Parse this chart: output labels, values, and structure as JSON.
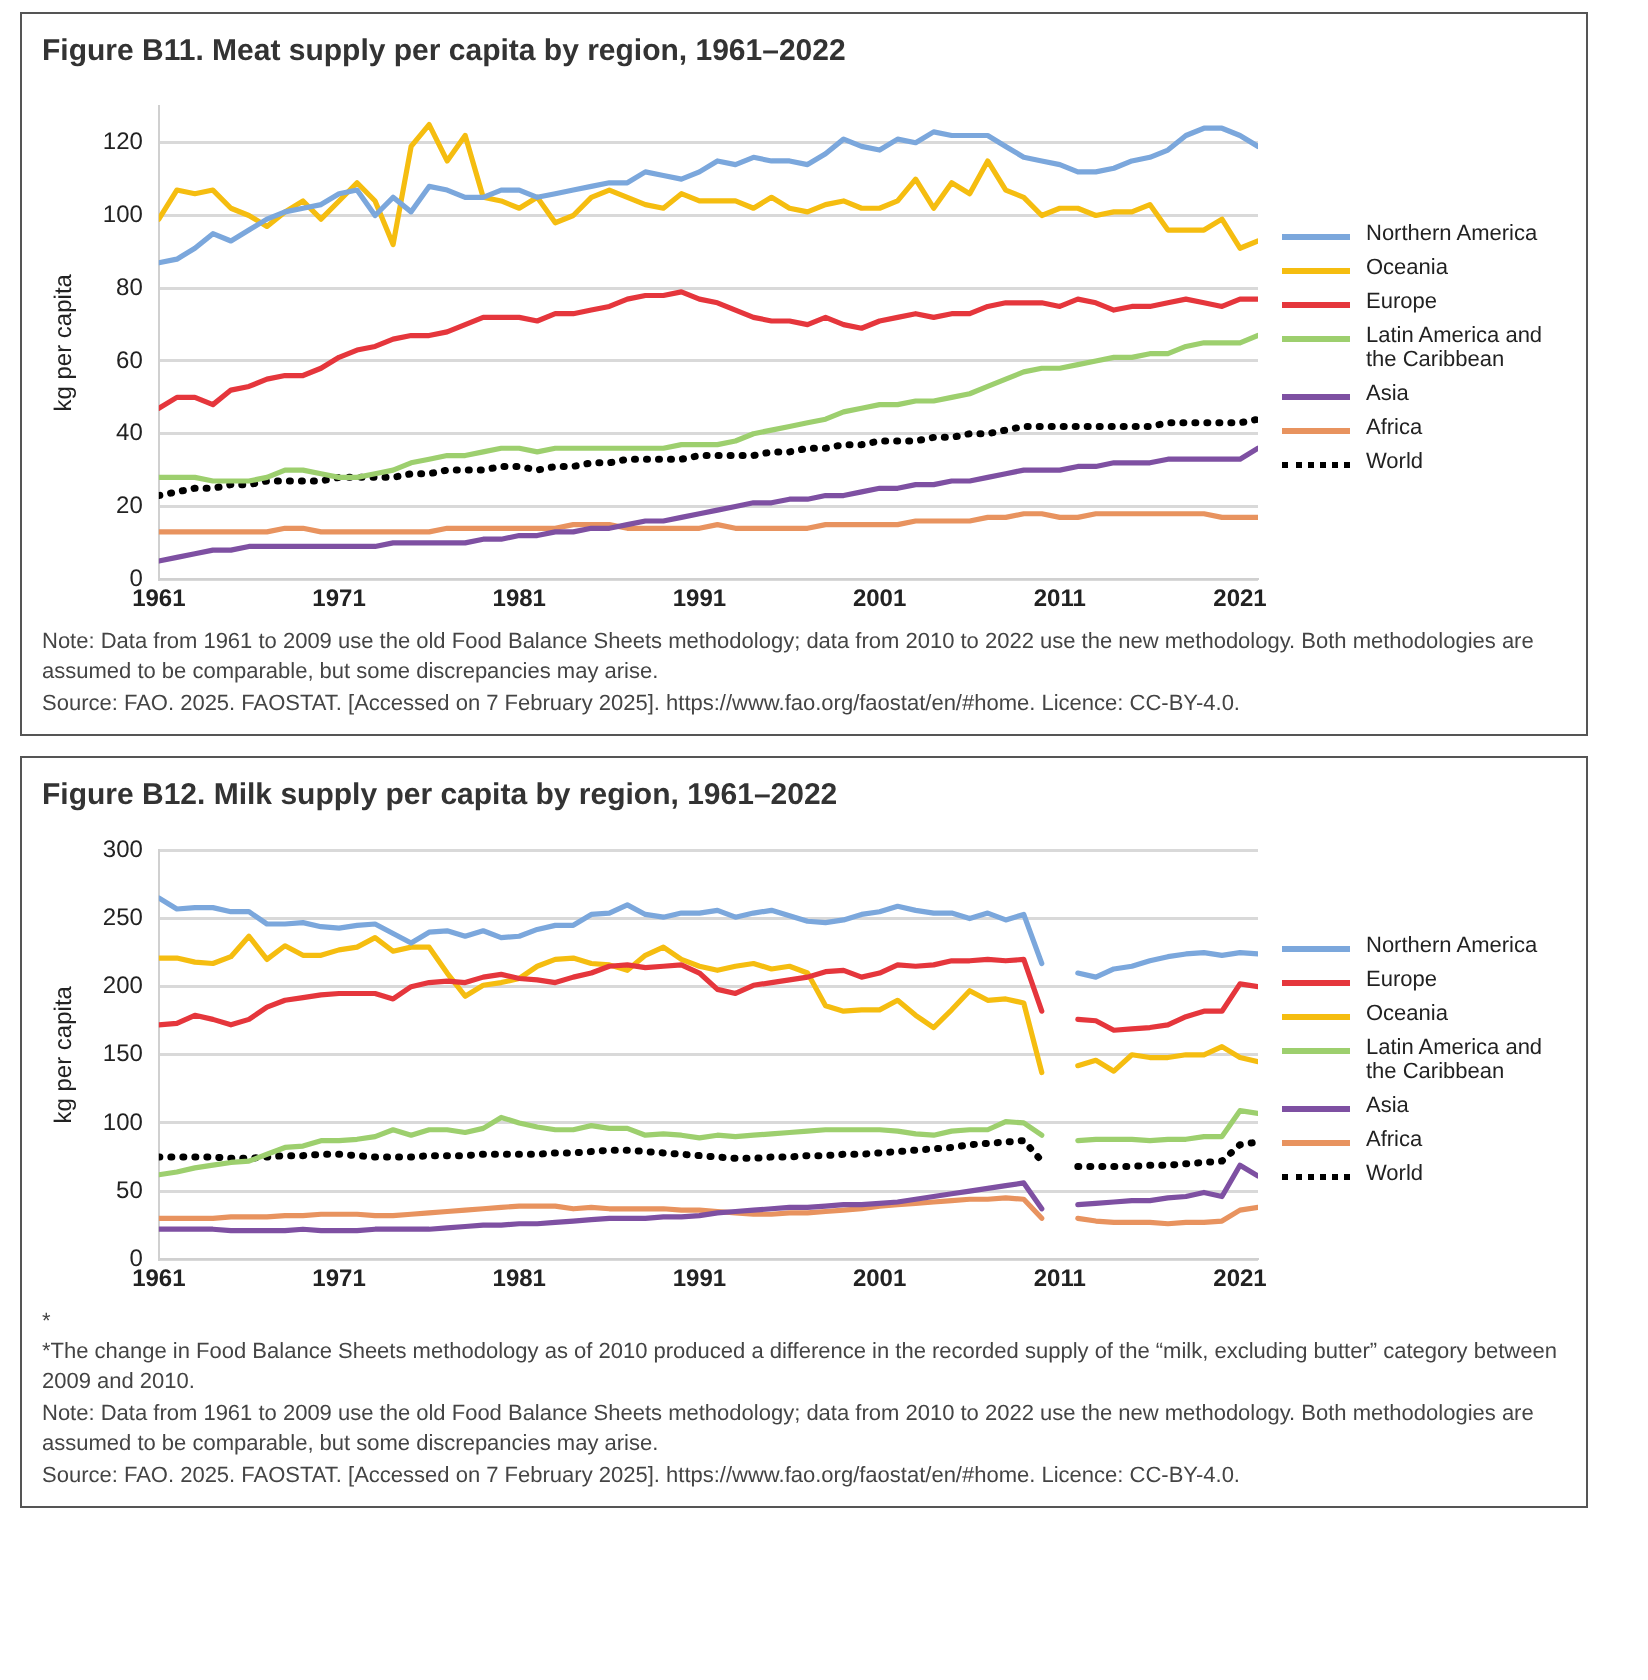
{
  "chart_data": [
    {
      "type": "line",
      "title": "Figure B11. Meat supply per capita by region, 1961–2022",
      "ylabel": "kg per capita",
      "x": [
        1961,
        1962,
        1963,
        1964,
        1965,
        1966,
        1967,
        1968,
        1969,
        1970,
        1971,
        1972,
        1973,
        1974,
        1975,
        1976,
        1977,
        1978,
        1979,
        1980,
        1981,
        1982,
        1983,
        1984,
        1985,
        1986,
        1987,
        1988,
        1989,
        1990,
        1991,
        1992,
        1993,
        1994,
        1995,
        1996,
        1997,
        1998,
        1999,
        2000,
        2001,
        2002,
        2003,
        2004,
        2005,
        2006,
        2007,
        2008,
        2009,
        2010,
        2011,
        2012,
        2013,
        2014,
        2015,
        2016,
        2017,
        2018,
        2019,
        2020,
        2021,
        2022
      ],
      "xlim": [
        1961,
        2022
      ],
      "xticks": [
        1961,
        1971,
        1981,
        1991,
        2001,
        2011,
        2021
      ],
      "ylim": [
        0,
        130
      ],
      "yticks": [
        0,
        20,
        40,
        60,
        80,
        100,
        120
      ],
      "grid": "y",
      "legend": "right",
      "series": [
        {
          "name": "Northern America",
          "color": "#7ba7dc",
          "values": [
            87,
            88,
            91,
            95,
            93,
            96,
            99,
            101,
            102,
            103,
            106,
            107,
            100,
            105,
            101,
            108,
            107,
            105,
            105,
            107,
            107,
            105,
            106,
            107,
            108,
            109,
            109,
            112,
            111,
            110,
            112,
            115,
            114,
            116,
            115,
            115,
            114,
            117,
            121,
            119,
            118,
            121,
            120,
            123,
            122,
            122,
            122,
            119,
            116,
            115,
            114,
            112,
            112,
            113,
            115,
            116,
            118,
            122,
            124,
            124,
            122,
            119
          ]
        },
        {
          "name": "Oceania",
          "color": "#f5bd10",
          "values": [
            99,
            107,
            106,
            107,
            102,
            100,
            97,
            101,
            104,
            99,
            104,
            109,
            104,
            92,
            119,
            125,
            115,
            122,
            105,
            104,
            102,
            105,
            98,
            100,
            105,
            107,
            105,
            103,
            102,
            106,
            104,
            104,
            104,
            102,
            105,
            102,
            101,
            103,
            104,
            102,
            102,
            104,
            110,
            102,
            109,
            106,
            115,
            107,
            105,
            100,
            102,
            102,
            100,
            101,
            101,
            103,
            96,
            96,
            96,
            99,
            91,
            93
          ]
        },
        {
          "name": "Europe",
          "color": "#e5363c",
          "values": [
            47,
            50,
            50,
            48,
            52,
            53,
            55,
            56,
            56,
            58,
            61,
            63,
            64,
            66,
            67,
            67,
            68,
            70,
            72,
            72,
            72,
            71,
            73,
            73,
            74,
            75,
            77,
            78,
            78,
            79,
            77,
            76,
            74,
            72,
            71,
            71,
            70,
            72,
            70,
            69,
            71,
            72,
            73,
            72,
            73,
            73,
            75,
            76,
            76,
            76,
            75,
            77,
            76,
            74,
            75,
            75,
            76,
            77,
            76,
            75,
            77,
            77
          ]
        },
        {
          "name": "Latin America and the Caribbean",
          "color": "#9dcf6e",
          "values": [
            28,
            28,
            28,
            27,
            27,
            27,
            28,
            30,
            30,
            29,
            28,
            28,
            29,
            30,
            32,
            33,
            34,
            34,
            35,
            36,
            36,
            35,
            36,
            36,
            36,
            36,
            36,
            36,
            36,
            37,
            37,
            37,
            38,
            40,
            41,
            42,
            43,
            44,
            46,
            47,
            48,
            48,
            49,
            49,
            50,
            51,
            53,
            55,
            57,
            58,
            58,
            59,
            60,
            61,
            61,
            62,
            62,
            64,
            65,
            65,
            65,
            67
          ]
        },
        {
          "name": "Asia",
          "color": "#7e50a2",
          "values": [
            5,
            6,
            7,
            8,
            8,
            9,
            9,
            9,
            9,
            9,
            9,
            9,
            9,
            10,
            10,
            10,
            10,
            10,
            11,
            11,
            12,
            12,
            13,
            13,
            14,
            14,
            15,
            16,
            16,
            17,
            18,
            19,
            20,
            21,
            21,
            22,
            22,
            23,
            23,
            24,
            25,
            25,
            26,
            26,
            27,
            27,
            28,
            29,
            30,
            30,
            30,
            31,
            31,
            32,
            32,
            32,
            33,
            33,
            33,
            33,
            33,
            36
          ]
        },
        {
          "name": "Africa",
          "color": "#e8935f",
          "values": [
            13,
            13,
            13,
            13,
            13,
            13,
            13,
            14,
            14,
            13,
            13,
            13,
            13,
            13,
            13,
            13,
            14,
            14,
            14,
            14,
            14,
            14,
            14,
            15,
            15,
            15,
            14,
            14,
            14,
            14,
            14,
            15,
            14,
            14,
            14,
            14,
            14,
            15,
            15,
            15,
            15,
            15,
            16,
            16,
            16,
            16,
            17,
            17,
            18,
            18,
            17,
            17,
            18,
            18,
            18,
            18,
            18,
            18,
            18,
            17,
            17,
            17
          ]
        },
        {
          "name": "World",
          "color": "#000000",
          "line_style": "dotted",
          "values": [
            23,
            24,
            25,
            25,
            26,
            26,
            27,
            27,
            27,
            27,
            28,
            28,
            28,
            28,
            29,
            29,
            30,
            30,
            30,
            31,
            31,
            30,
            31,
            31,
            32,
            32,
            33,
            33,
            33,
            33,
            34,
            34,
            34,
            34,
            35,
            35,
            36,
            36,
            37,
            37,
            38,
            38,
            38,
            39,
            39,
            40,
            40,
            41,
            42,
            42,
            42,
            42,
            42,
            42,
            42,
            42,
            43,
            43,
            43,
            43,
            43,
            44
          ]
        }
      ],
      "annotations": [
        "Note: Data from 1961 to 2009 use the old Food Balance Sheets methodology; data from 2010 to 2022 use the new methodology. Both methodologies are assumed to be comparable, but some discrepancies may arise.",
        "Source: FAO. 2025. FAOSTAT. [Accessed on 7 February 2025]. https://www.fao.org/faostat/en/#home. Licence: CC-BY-4.0."
      ]
    },
    {
      "type": "line",
      "title": "Figure B12. Milk supply per capita by region, 1961–2022",
      "ylabel": "kg per capita",
      "x": [
        1961,
        1962,
        1963,
        1964,
        1965,
        1966,
        1967,
        1968,
        1969,
        1970,
        1971,
        1972,
        1973,
        1974,
        1975,
        1976,
        1977,
        1978,
        1979,
        1980,
        1981,
        1982,
        1983,
        1984,
        1985,
        1986,
        1987,
        1988,
        1989,
        1990,
        1991,
        1992,
        1993,
        1994,
        1995,
        1996,
        1997,
        1998,
        1999,
        2000,
        2001,
        2002,
        2003,
        2004,
        2005,
        2006,
        2007,
        2008,
        2009,
        2010,
        2011,
        2012,
        2013,
        2014,
        2015,
        2016,
        2017,
        2018,
        2019,
        2020,
        2021,
        2022
      ],
      "xlim": [
        1961,
        2022
      ],
      "xticks": [
        1961,
        1971,
        1981,
        1991,
        2001,
        2011,
        2021
      ],
      "ylim": [
        0,
        300
      ],
      "yticks": [
        0,
        50,
        100,
        150,
        200,
        250,
        300
      ],
      "grid": "y",
      "legend": "right",
      "series": [
        {
          "name": "Northern America",
          "color": "#7ba7dc",
          "values": [
            265,
            257,
            258,
            258,
            255,
            255,
            246,
            246,
            247,
            244,
            243,
            245,
            246,
            239,
            232,
            240,
            241,
            237,
            241,
            236,
            237,
            242,
            245,
            245,
            253,
            254,
            260,
            253,
            251,
            254,
            254,
            256,
            251,
            254,
            256,
            252,
            248,
            247,
            249,
            253,
            255,
            259,
            256,
            254,
            254,
            250,
            254,
            249,
            253,
            217,
            null,
            210,
            207,
            213,
            215,
            219,
            222,
            224,
            225,
            223,
            225,
            224
          ]
        },
        {
          "name": "Europe",
          "color": "#e5363c",
          "values": [
            172,
            173,
            179,
            176,
            172,
            176,
            185,
            190,
            192,
            194,
            195,
            195,
            195,
            191,
            200,
            203,
            204,
            203,
            207,
            209,
            206,
            205,
            203,
            207,
            210,
            215,
            216,
            214,
            215,
            216,
            210,
            198,
            195,
            201,
            203,
            205,
            207,
            211,
            212,
            207,
            210,
            216,
            215,
            216,
            219,
            219,
            220,
            219,
            220,
            182,
            null,
            176,
            175,
            168,
            169,
            170,
            172,
            178,
            182,
            182,
            202,
            200
          ]
        },
        {
          "name": "Oceania",
          "color": "#f5bd10",
          "values": [
            221,
            221,
            218,
            217,
            222,
            237,
            220,
            230,
            223,
            223,
            227,
            229,
            236,
            226,
            229,
            229,
            210,
            193,
            201,
            203,
            206,
            215,
            220,
            221,
            217,
            216,
            212,
            223,
            229,
            220,
            215,
            212,
            215,
            217,
            213,
            215,
            210,
            186,
            182,
            183,
            183,
            190,
            179,
            170,
            183,
            197,
            190,
            191,
            188,
            137,
            null,
            142,
            146,
            138,
            150,
            148,
            148,
            150,
            150,
            156,
            148,
            145
          ]
        },
        {
          "name": "Latin America and the Caribbean",
          "color": "#9dcf6e",
          "values": [
            62,
            64,
            67,
            69,
            71,
            72,
            77,
            82,
            83,
            87,
            87,
            88,
            90,
            95,
            91,
            95,
            95,
            93,
            96,
            104,
            100,
            97,
            95,
            95,
            98,
            96,
            96,
            91,
            92,
            91,
            89,
            91,
            90,
            91,
            92,
            93,
            94,
            95,
            95,
            95,
            95,
            94,
            92,
            91,
            94,
            95,
            95,
            101,
            100,
            91,
            null,
            87,
            88,
            88,
            88,
            87,
            88,
            88,
            90,
            90,
            109,
            107
          ]
        },
        {
          "name": "Asia",
          "color": "#7e50a2",
          "values": [
            22,
            22,
            22,
            22,
            21,
            21,
            21,
            21,
            22,
            21,
            21,
            21,
            22,
            22,
            22,
            22,
            23,
            24,
            25,
            25,
            26,
            26,
            27,
            28,
            29,
            30,
            30,
            30,
            31,
            31,
            32,
            34,
            35,
            36,
            37,
            38,
            38,
            39,
            40,
            40,
            41,
            42,
            44,
            46,
            48,
            50,
            52,
            54,
            56,
            37,
            null,
            40,
            41,
            42,
            43,
            43,
            45,
            46,
            49,
            46,
            69,
            61
          ]
        },
        {
          "name": "Africa",
          "color": "#e8935f",
          "values": [
            30,
            30,
            30,
            30,
            31,
            31,
            31,
            32,
            32,
            33,
            33,
            33,
            32,
            32,
            33,
            34,
            35,
            36,
            37,
            38,
            39,
            39,
            39,
            37,
            38,
            37,
            37,
            37,
            37,
            36,
            36,
            35,
            34,
            33,
            33,
            34,
            34,
            35,
            36,
            37,
            39,
            40,
            41,
            42,
            43,
            44,
            44,
            45,
            44,
            30,
            null,
            30,
            28,
            27,
            27,
            27,
            26,
            27,
            27,
            28,
            36,
            38
          ]
        },
        {
          "name": "World",
          "color": "#000000",
          "line_style": "dotted",
          "values": [
            75,
            75,
            75,
            75,
            74,
            74,
            75,
            76,
            76,
            77,
            77,
            76,
            75,
            75,
            75,
            76,
            76,
            76,
            77,
            77,
            77,
            77,
            78,
            78,
            79,
            80,
            80,
            79,
            78,
            77,
            76,
            75,
            74,
            74,
            75,
            75,
            76,
            76,
            77,
            77,
            78,
            79,
            80,
            81,
            82,
            84,
            85,
            86,
            87,
            72,
            null,
            68,
            68,
            68,
            68,
            69,
            69,
            70,
            71,
            72,
            84,
            86
          ]
        }
      ],
      "annotations": [
        "*",
        "*The change in Food Balance Sheets methodology as of 2010 produced a difference in the recorded supply of the “milk, excluding butter” category between 2009 and 2010.",
        "Note: Data from 1961 to 2009 use the old Food Balance Sheets methodology; data from 2010 to 2022 use the new methodology. Both methodologies are assumed to be comparable, but some discrepancies may arise.",
        "Source: FAO. 2025. FAOSTAT. [Accessed on 7 February 2025]. https://www.fao.org/faostat/en/#home. Licence: CC-BY-4.0."
      ]
    }
  ]
}
